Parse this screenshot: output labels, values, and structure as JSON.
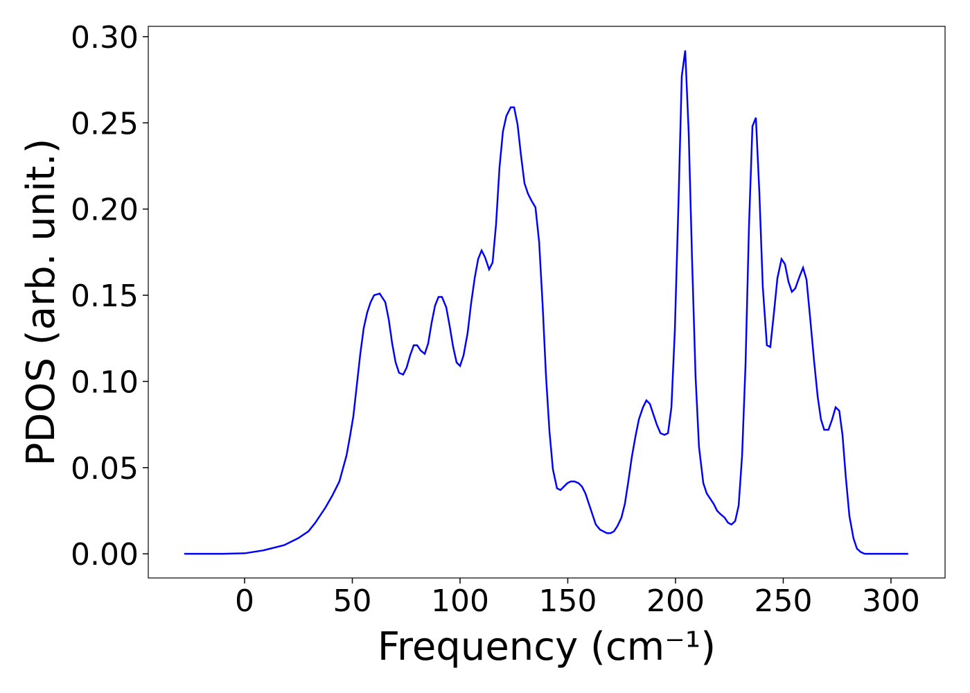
{
  "chart_data": {
    "type": "line",
    "x_label": "Frequency (cm⁻¹)",
    "y_label": "PDOS (arb. unit.)",
    "xlim": [
      -44.7,
      325.1
    ],
    "ylim": [
      -0.014,
      0.306
    ],
    "xticks": [
      0,
      50,
      100,
      150,
      200,
      250,
      300
    ],
    "yticks": [
      {
        "value": 0,
        "label": "0.00"
      },
      {
        "value": 0.05,
        "label": "0.05"
      },
      {
        "value": 0.1,
        "label": "0.10"
      },
      {
        "value": 0.15,
        "label": "0.15"
      },
      {
        "value": 0.2,
        "label": "0.20"
      },
      {
        "value": 0.25,
        "label": "0.25"
      },
      {
        "value": 0.3,
        "label": "0.30"
      }
    ],
    "x": [
      -28,
      -10,
      0,
      8.7,
      18.3,
      24.8,
      29.6,
      32.8,
      37.6,
      40.8,
      44,
      47.3,
      48.9,
      50.5,
      52.1,
      53.7,
      55.3,
      56.9,
      58.5,
      60.1,
      62.7,
      65.3,
      66.9,
      68.5,
      70.1,
      71.7,
      73.6,
      75.2,
      76.8,
      78.5,
      80.1,
      81.7,
      83.6,
      85.2,
      86.8,
      88.4,
      90,
      91.6,
      93.6,
      95.2,
      96.8,
      98.4,
      100,
      101.6,
      103.5,
      105.1,
      106.8,
      108.4,
      110,
      111.6,
      113.5,
      115.1,
      116.7,
      118.3,
      119.9,
      121.5,
      123.5,
      125.1,
      126.7,
      128.3,
      129.9,
      131.5,
      133.1,
      135,
      136.7,
      138.3,
      139.9,
      141.5,
      143.1,
      145,
      146.6,
      148.2,
      149.8,
      151.4,
      153.1,
      155,
      156.6,
      158.2,
      159.8,
      161.4,
      163,
      165,
      166.6,
      168.2,
      169.8,
      171.4,
      173,
      174.9,
      176.5,
      178.1,
      179.7,
      181.4,
      183,
      184.9,
      186.5,
      188.1,
      189.7,
      191.3,
      193,
      194.9,
      196.5,
      198.1,
      199.7,
      201.3,
      202.9,
      204.5,
      206.1,
      207.7,
      209.3,
      210.9,
      212.9,
      214.5,
      216.1,
      217.7,
      219.3,
      220.9,
      222.8,
      224.4,
      226,
      227.7,
      229.3,
      230.9,
      232.5,
      234.1,
      235.7,
      237.3,
      238.9,
      240.5,
      242.4,
      244,
      245.7,
      247.3,
      249.2,
      250.8,
      252.4,
      254,
      255.6,
      257.6,
      259.2,
      260.8,
      262.4,
      264.3,
      266,
      267.5,
      269,
      271,
      272.7,
      274.3,
      276,
      277.5,
      279,
      280.7,
      282.6,
      284.2,
      286,
      287.8,
      295,
      308
    ],
    "series": [
      {
        "name": "PDOS",
        "color": "#0000ff",
        "values": [
          0,
          0,
          0.0003,
          0.002,
          0.005,
          0.009,
          0.013,
          0.018,
          0.027,
          0.034,
          0.042,
          0.057,
          0.068,
          0.08,
          0.098,
          0.116,
          0.131,
          0.14,
          0.146,
          0.15,
          0.151,
          0.146,
          0.136,
          0.122,
          0.111,
          0.105,
          0.104,
          0.108,
          0.115,
          0.121,
          0.121,
          0.118,
          0.116,
          0.122,
          0.134,
          0.144,
          0.149,
          0.149,
          0.143,
          0.132,
          0.12,
          0.111,
          0.109,
          0.115,
          0.128,
          0.145,
          0.16,
          0.171,
          0.176,
          0.172,
          0.165,
          0.169,
          0.191,
          0.224,
          0.245,
          0.254,
          0.259,
          0.259,
          0.249,
          0.231,
          0.215,
          0.209,
          0.205,
          0.201,
          0.181,
          0.145,
          0.103,
          0.071,
          0.049,
          0.038,
          0.037,
          0.039,
          0.041,
          0.042,
          0.042,
          0.041,
          0.039,
          0.035,
          0.029,
          0.023,
          0.017,
          0.014,
          0.013,
          0.012,
          0.012,
          0.013,
          0.016,
          0.021,
          0.029,
          0.042,
          0.056,
          0.068,
          0.078,
          0.085,
          0.089,
          0.087,
          0.081,
          0.075,
          0.07,
          0.069,
          0.07,
          0.085,
          0.13,
          0.2,
          0.277,
          0.292,
          0.245,
          0.17,
          0.103,
          0.062,
          0.041,
          0.035,
          0.032,
          0.029,
          0.025,
          0.023,
          0.021,
          0.018,
          0.017,
          0.019,
          0.028,
          0.057,
          0.11,
          0.19,
          0.248,
          0.253,
          0.21,
          0.155,
          0.121,
          0.12,
          0.14,
          0.16,
          0.171,
          0.168,
          0.158,
          0.152,
          0.154,
          0.161,
          0.166,
          0.159,
          0.138,
          0.112,
          0.091,
          0.078,
          0.072,
          0.072,
          0.078,
          0.085,
          0.083,
          0.069,
          0.045,
          0.022,
          0.009,
          0.003,
          0.001,
          0,
          0,
          0
        ]
      }
    ]
  }
}
